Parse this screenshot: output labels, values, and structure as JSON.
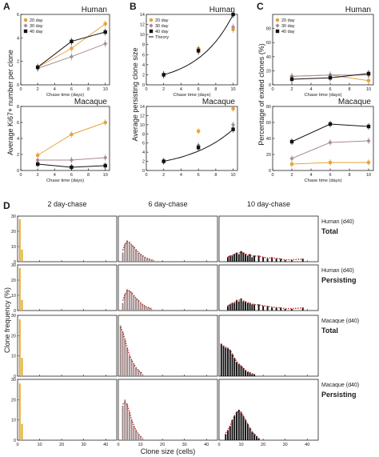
{
  "panel_letters": [
    "A",
    "B",
    "C",
    "D"
  ],
  "colors": {
    "d20": "#e8a33a",
    "d30": "#a58a9a",
    "d40": "#111111",
    "hist_d2": "#e0a526",
    "hist_d6": "#a08888",
    "hist_d10": "#111111",
    "fit": "#c8282a"
  },
  "legend_labels": [
    "20 day",
    "30 day",
    "40 day"
  ],
  "legend_theory": "Theory",
  "chart_data": [
    {
      "id": "A-human",
      "type": "line",
      "title": "Human",
      "xlabel": "Chase time (days)",
      "ylabel": "Average Ki67+ number per clone",
      "x": [
        2,
        6,
        10
      ],
      "xlim": [
        0,
        10.5
      ],
      "ylim": [
        0,
        6
      ],
      "xticks": [
        0,
        2,
        4,
        6,
        8,
        10
      ],
      "yticks": [
        0,
        2,
        4,
        6
      ],
      "series": [
        {
          "name": "20 day",
          "values": [
            1.5,
            3.1,
            5.2
          ]
        },
        {
          "name": "30 day",
          "values": [
            1.4,
            2.4,
            3.5
          ]
        },
        {
          "name": "40 day",
          "values": [
            1.5,
            3.7,
            4.5
          ]
        }
      ]
    },
    {
      "id": "A-macaque",
      "type": "line",
      "title": "Macaque",
      "xlabel": "Chase time (days)",
      "ylabel": "",
      "x": [
        2,
        6,
        10
      ],
      "xlim": [
        0,
        10.5
      ],
      "ylim": [
        0,
        8
      ],
      "xticks": [
        0,
        2,
        4,
        6,
        8,
        10
      ],
      "yticks": [
        0,
        2,
        4,
        6,
        8
      ],
      "series": [
        {
          "name": "20 day",
          "values": [
            1.9,
            4.5,
            6.0
          ]
        },
        {
          "name": "30 day",
          "values": [
            1.3,
            1.3,
            1.6
          ]
        },
        {
          "name": "40 day",
          "values": [
            0.8,
            0.4,
            0.6
          ]
        }
      ]
    },
    {
      "id": "B-human",
      "type": "line",
      "title": "Human",
      "xlabel": "Chase time (days)",
      "ylabel": "Average persisting clone size",
      "x": [
        2,
        6,
        10
      ],
      "xlim": [
        0,
        10.5
      ],
      "ylim": [
        0,
        14
      ],
      "xticks": [
        0,
        2,
        4,
        6,
        8,
        10
      ],
      "yticks": [
        0,
        2,
        4,
        6,
        8,
        10,
        12,
        14
      ],
      "series": [
        {
          "name": "20 day",
          "values": [
            2.0,
            7.2,
            11.0
          ]
        },
        {
          "name": "30 day",
          "values": [
            2.0,
            6.6,
            11.5
          ]
        },
        {
          "name": "40 day",
          "values": [
            2.0,
            6.8,
            14.0
          ]
        },
        {
          "name": "Theory",
          "values": [
            2.0,
            5.6,
            14.0
          ]
        }
      ]
    },
    {
      "id": "B-macaque",
      "type": "line",
      "title": "Macaque",
      "xlabel": "",
      "ylabel": "",
      "x": [
        2,
        6,
        10
      ],
      "xlim": [
        0,
        10.5
      ],
      "ylim": [
        0,
        14
      ],
      "xticks": [
        0,
        2,
        4,
        6,
        8,
        10
      ],
      "yticks": [
        0,
        2,
        4,
        6,
        8,
        10,
        12,
        14
      ],
      "series": [
        {
          "name": "20 day",
          "values": [
            2.1,
            8.6,
            13.5
          ]
        },
        {
          "name": "30 day",
          "values": [
            2.0,
            5.5,
            10.0
          ]
        },
        {
          "name": "40 day",
          "values": [
            2.0,
            5.0,
            9.0
          ]
        },
        {
          "name": "Theory",
          "values": [
            2.0,
            5.2,
            9.0
          ]
        }
      ]
    },
    {
      "id": "C-human",
      "type": "line",
      "title": "Human",
      "xlabel": "Chase time (days)",
      "ylabel": "Percentage of exited clones (%)",
      "x": [
        2,
        6,
        10
      ],
      "xlim": [
        0,
        10.5
      ],
      "ylim": [
        0,
        100
      ],
      "xticks": [
        0,
        2,
        4,
        6,
        8,
        10
      ],
      "yticks": [
        0,
        20,
        40,
        60,
        80
      ],
      "series": [
        {
          "name": "20 day",
          "values": [
            12,
            14,
            6
          ]
        },
        {
          "name": "30 day",
          "values": [
            12,
            14,
            14
          ]
        },
        {
          "name": "40 day",
          "values": [
            8,
            10,
            16
          ]
        }
      ]
    },
    {
      "id": "C-macaque",
      "type": "line",
      "title": "Macaque",
      "xlabel": "Chase time (days)",
      "ylabel": "",
      "x": [
        2,
        6,
        10
      ],
      "xlim": [
        0,
        10.5
      ],
      "ylim": [
        0,
        80
      ],
      "xticks": [
        0,
        2,
        4,
        6,
        8,
        10
      ],
      "yticks": [
        0,
        20,
        40,
        60,
        80
      ],
      "series": [
        {
          "name": "20 day",
          "values": [
            8,
            10,
            10
          ]
        },
        {
          "name": "30 day",
          "values": [
            15,
            35,
            37
          ]
        },
        {
          "name": "40 day",
          "values": [
            36,
            58,
            55
          ]
        }
      ]
    },
    {
      "id": "D-histograms",
      "type": "bar",
      "xlabel": "Clone size (cells)",
      "ylabel": "Clone frequency (%)",
      "column_titles": [
        "2 day-chase",
        "6 day-chase",
        "10 day-chase"
      ],
      "xticks": [
        0,
        10,
        20,
        30,
        40
      ],
      "xlim": [
        0,
        45
      ],
      "ylim": [
        0,
        30
      ],
      "yticks": [
        0,
        10,
        20,
        30
      ],
      "rows": [
        {
          "species": "Human (d40)",
          "kind": "Total",
          "day2": {
            "1": 28,
            "2": 8
          },
          "day6": {
            "2": 6,
            "3": 12,
            "4": 14,
            "5": 13,
            "6": 11,
            "7": 10,
            "8": 8,
            "9": 6,
            "10": 5,
            "11": 4,
            "12": 3,
            "13": 2,
            "14": 2,
            "15": 1,
            "16": 1
          },
          "day10": {
            "4": 3,
            "5": 4,
            "6": 4,
            "7": 5,
            "8": 6,
            "9": 5,
            "10": 7,
            "11": 6,
            "12": 5,
            "13": 4,
            "14": 5,
            "15": 3,
            "16": 4,
            "18": 4,
            "20": 3,
            "22": 2,
            "24": 3,
            "26": 2,
            "28": 2,
            "30": 1,
            "33": 1,
            "38": 2
          }
        },
        {
          "species": "Human (d40)",
          "kind": "Persisting",
          "day2": {
            "1": 28,
            "2": 7
          },
          "day6": {
            "2": 5,
            "3": 11,
            "4": 14,
            "5": 13,
            "6": 12,
            "7": 10,
            "8": 8,
            "9": 7,
            "10": 5,
            "11": 4,
            "12": 3,
            "13": 2,
            "14": 2,
            "15": 1
          },
          "day10": {
            "4": 3,
            "5": 4,
            "6": 5,
            "7": 5,
            "8": 7,
            "9": 6,
            "10": 8,
            "11": 6,
            "12": 6,
            "13": 5,
            "14": 5,
            "15": 4,
            "16": 4,
            "18": 4,
            "20": 3,
            "22": 3,
            "24": 2,
            "26": 2,
            "28": 2,
            "30": 1,
            "33": 1,
            "38": 2
          }
        },
        {
          "species": "Macaque (d40)",
          "kind": "Total",
          "day2": {
            "1": 28,
            "2": 9
          },
          "day6": {
            "1": 25,
            "2": 22,
            "3": 18,
            "4": 14,
            "5": 10,
            "6": 8,
            "7": 6,
            "8": 4,
            "9": 3,
            "10": 2,
            "11": 1
          },
          "day10": {
            "1": 16,
            "2": 15,
            "3": 14,
            "4": 14,
            "5": 13,
            "6": 11,
            "7": 9,
            "8": 7,
            "9": 6,
            "10": 5,
            "11": 4,
            "12": 3,
            "13": 2,
            "14": 2,
            "15": 1,
            "16": 1
          }
        },
        {
          "species": "Macaque (d40)",
          "kind": "Persisting",
          "day2": {
            "1": 28,
            "2": 8
          },
          "day6": {
            "2": 17,
            "3": 20,
            "4": 18,
            "5": 14,
            "6": 10,
            "7": 7,
            "8": 5,
            "9": 3,
            "10": 2,
            "11": 1
          },
          "day10": {
            "3": 3,
            "4": 5,
            "5": 7,
            "6": 10,
            "7": 12,
            "8": 14,
            "9": 15,
            "10": 14,
            "11": 12,
            "12": 10,
            "13": 8,
            "14": 6,
            "15": 4,
            "16": 3,
            "17": 2,
            "18": 1
          }
        }
      ]
    }
  ]
}
